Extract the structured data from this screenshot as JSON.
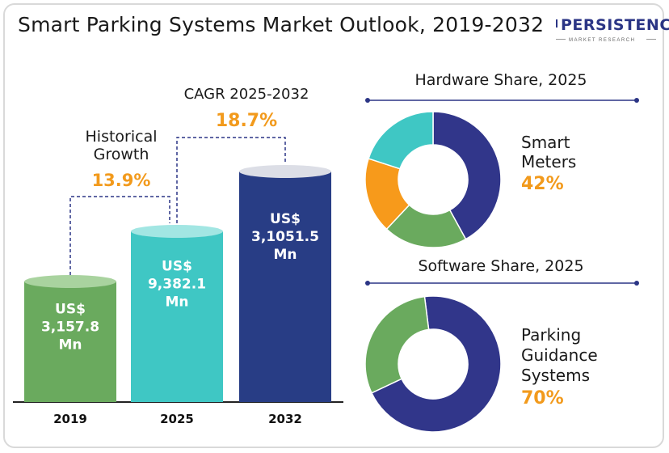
{
  "title": "Smart Parking Systems Market Outlook, 2019-2032",
  "logo": {
    "main": "PERSISTENCE",
    "sub": "MARKET RESEARCH"
  },
  "colors": {
    "bar_2019": "#6aaa5e",
    "bar_2025": "#3fc7c4",
    "bar_2032": "#283d85",
    "accent": "#f29a1c",
    "donut_navy": "#31368a",
    "donut_green": "#6aaa5e",
    "donut_orange": "#f79a1b",
    "donut_teal": "#3fc7c4"
  },
  "annotations": {
    "historical": {
      "label_line1": "Historical",
      "label_line2": "Growth",
      "value": "13.9%"
    },
    "cagr": {
      "label": "CAGR 2025-2032",
      "value": "18.7%"
    }
  },
  "chart_data": [
    {
      "type": "bar",
      "categories": [
        "2019",
        "2025",
        "2032"
      ],
      "values": [
        3157.8,
        9382.1,
        31051.5
      ],
      "labels": [
        [
          "US$",
          "3,157.8",
          "Mn"
        ],
        [
          "US$",
          "9,382.1",
          "Mn"
        ],
        [
          "US$",
          "3,1051.5",
          "Mn"
        ]
      ],
      "title": "",
      "xlabel": "",
      "ylabel": ""
    },
    {
      "type": "pie",
      "title": "Hardware Share, 2025",
      "highlight_label": [
        "Smart",
        "Meters"
      ],
      "highlight_value": "42%",
      "slices": [
        {
          "value": 42,
          "color": "#31368a"
        },
        {
          "value": 20,
          "color": "#6aaa5e"
        },
        {
          "value": 18,
          "color": "#f79a1b"
        },
        {
          "value": 20,
          "color": "#3fc7c4"
        }
      ]
    },
    {
      "type": "pie",
      "title": "Software Share, 2025",
      "highlight_label": [
        "Parking",
        "Guidance",
        "Systems"
      ],
      "highlight_value": "70%",
      "slices": [
        {
          "value": 70,
          "color": "#31368a"
        },
        {
          "value": 30,
          "color": "#6aaa5e"
        }
      ]
    }
  ]
}
